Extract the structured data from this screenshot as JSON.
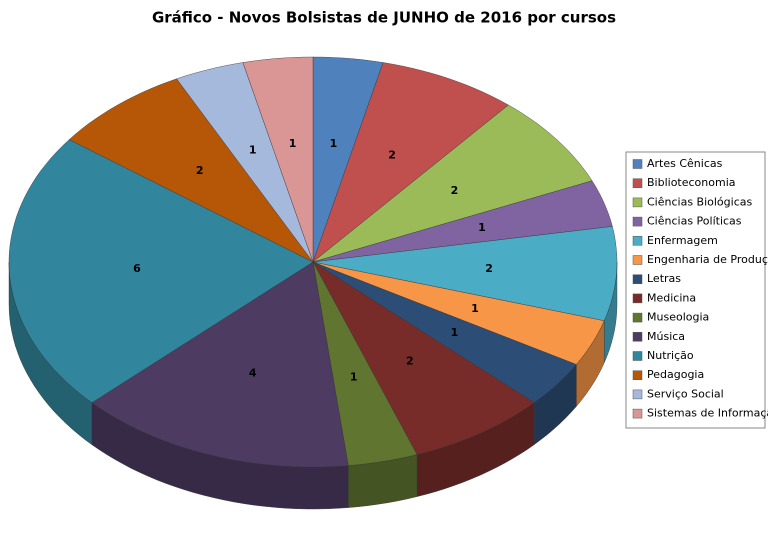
{
  "chart_data": {
    "type": "pie3d",
    "title": "Gráfico - Novos Bolsistas de JUNHO de 2016 por cursos",
    "categories": [
      "Artes Cênicas",
      "Biblioteconomia",
      "Ciências Biológicas",
      "Ciências Políticas",
      "Enfermagem",
      "Engenharia de Produção",
      "Letras",
      "Medicina",
      "Museologia",
      "Música",
      "Nutrição",
      "Pedagogia",
      "Serviço Social",
      "Sistemas de Informação"
    ],
    "values": [
      1,
      2,
      2,
      1,
      2,
      1,
      1,
      2,
      1,
      4,
      6,
      2,
      1,
      1
    ],
    "colors": [
      "#4f81bd",
      "#c0504d",
      "#9bbb59",
      "#8064a2",
      "#4bacc6",
      "#f79646",
      "#2c4d75",
      "#772c2a",
      "#5f7530",
      "#4d3b62",
      "#31859c",
      "#b65708",
      "#a5b9dc",
      "#d99694"
    ],
    "legend": "right"
  }
}
